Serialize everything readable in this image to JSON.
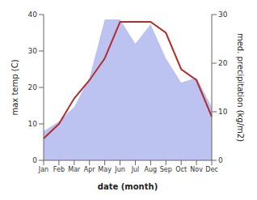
{
  "chart_data": {
    "type": "line",
    "xlabel": "date (month)",
    "ylabel": "max temp (C)",
    "y2label": "med. precipitation (kg/m2)",
    "categories": [
      "Jan",
      "Feb",
      "Mar",
      "Apr",
      "May",
      "Jun",
      "Jul",
      "Aug",
      "Sep",
      "Oct",
      "Nov",
      "Dec"
    ],
    "series": [
      {
        "type": "area",
        "axis": "y2",
        "color": "#b0b8ee",
        "values": [
          6,
          8,
          11,
          17,
          29,
          29,
          24,
          28,
          21,
          16,
          17,
          11
        ]
      },
      {
        "type": "line",
        "color": "#b03030",
        "values": [
          6,
          10,
          17,
          22,
          28,
          38,
          38,
          38,
          35,
          25,
          22,
          12
        ]
      }
    ],
    "ylim": [
      0,
      40
    ],
    "yticks": [
      0,
      10,
      20,
      30,
      40
    ],
    "y2lim": [
      0,
      30
    ],
    "y2ticks": [
      0,
      10,
      20,
      30
    ],
    "grid": false
  }
}
